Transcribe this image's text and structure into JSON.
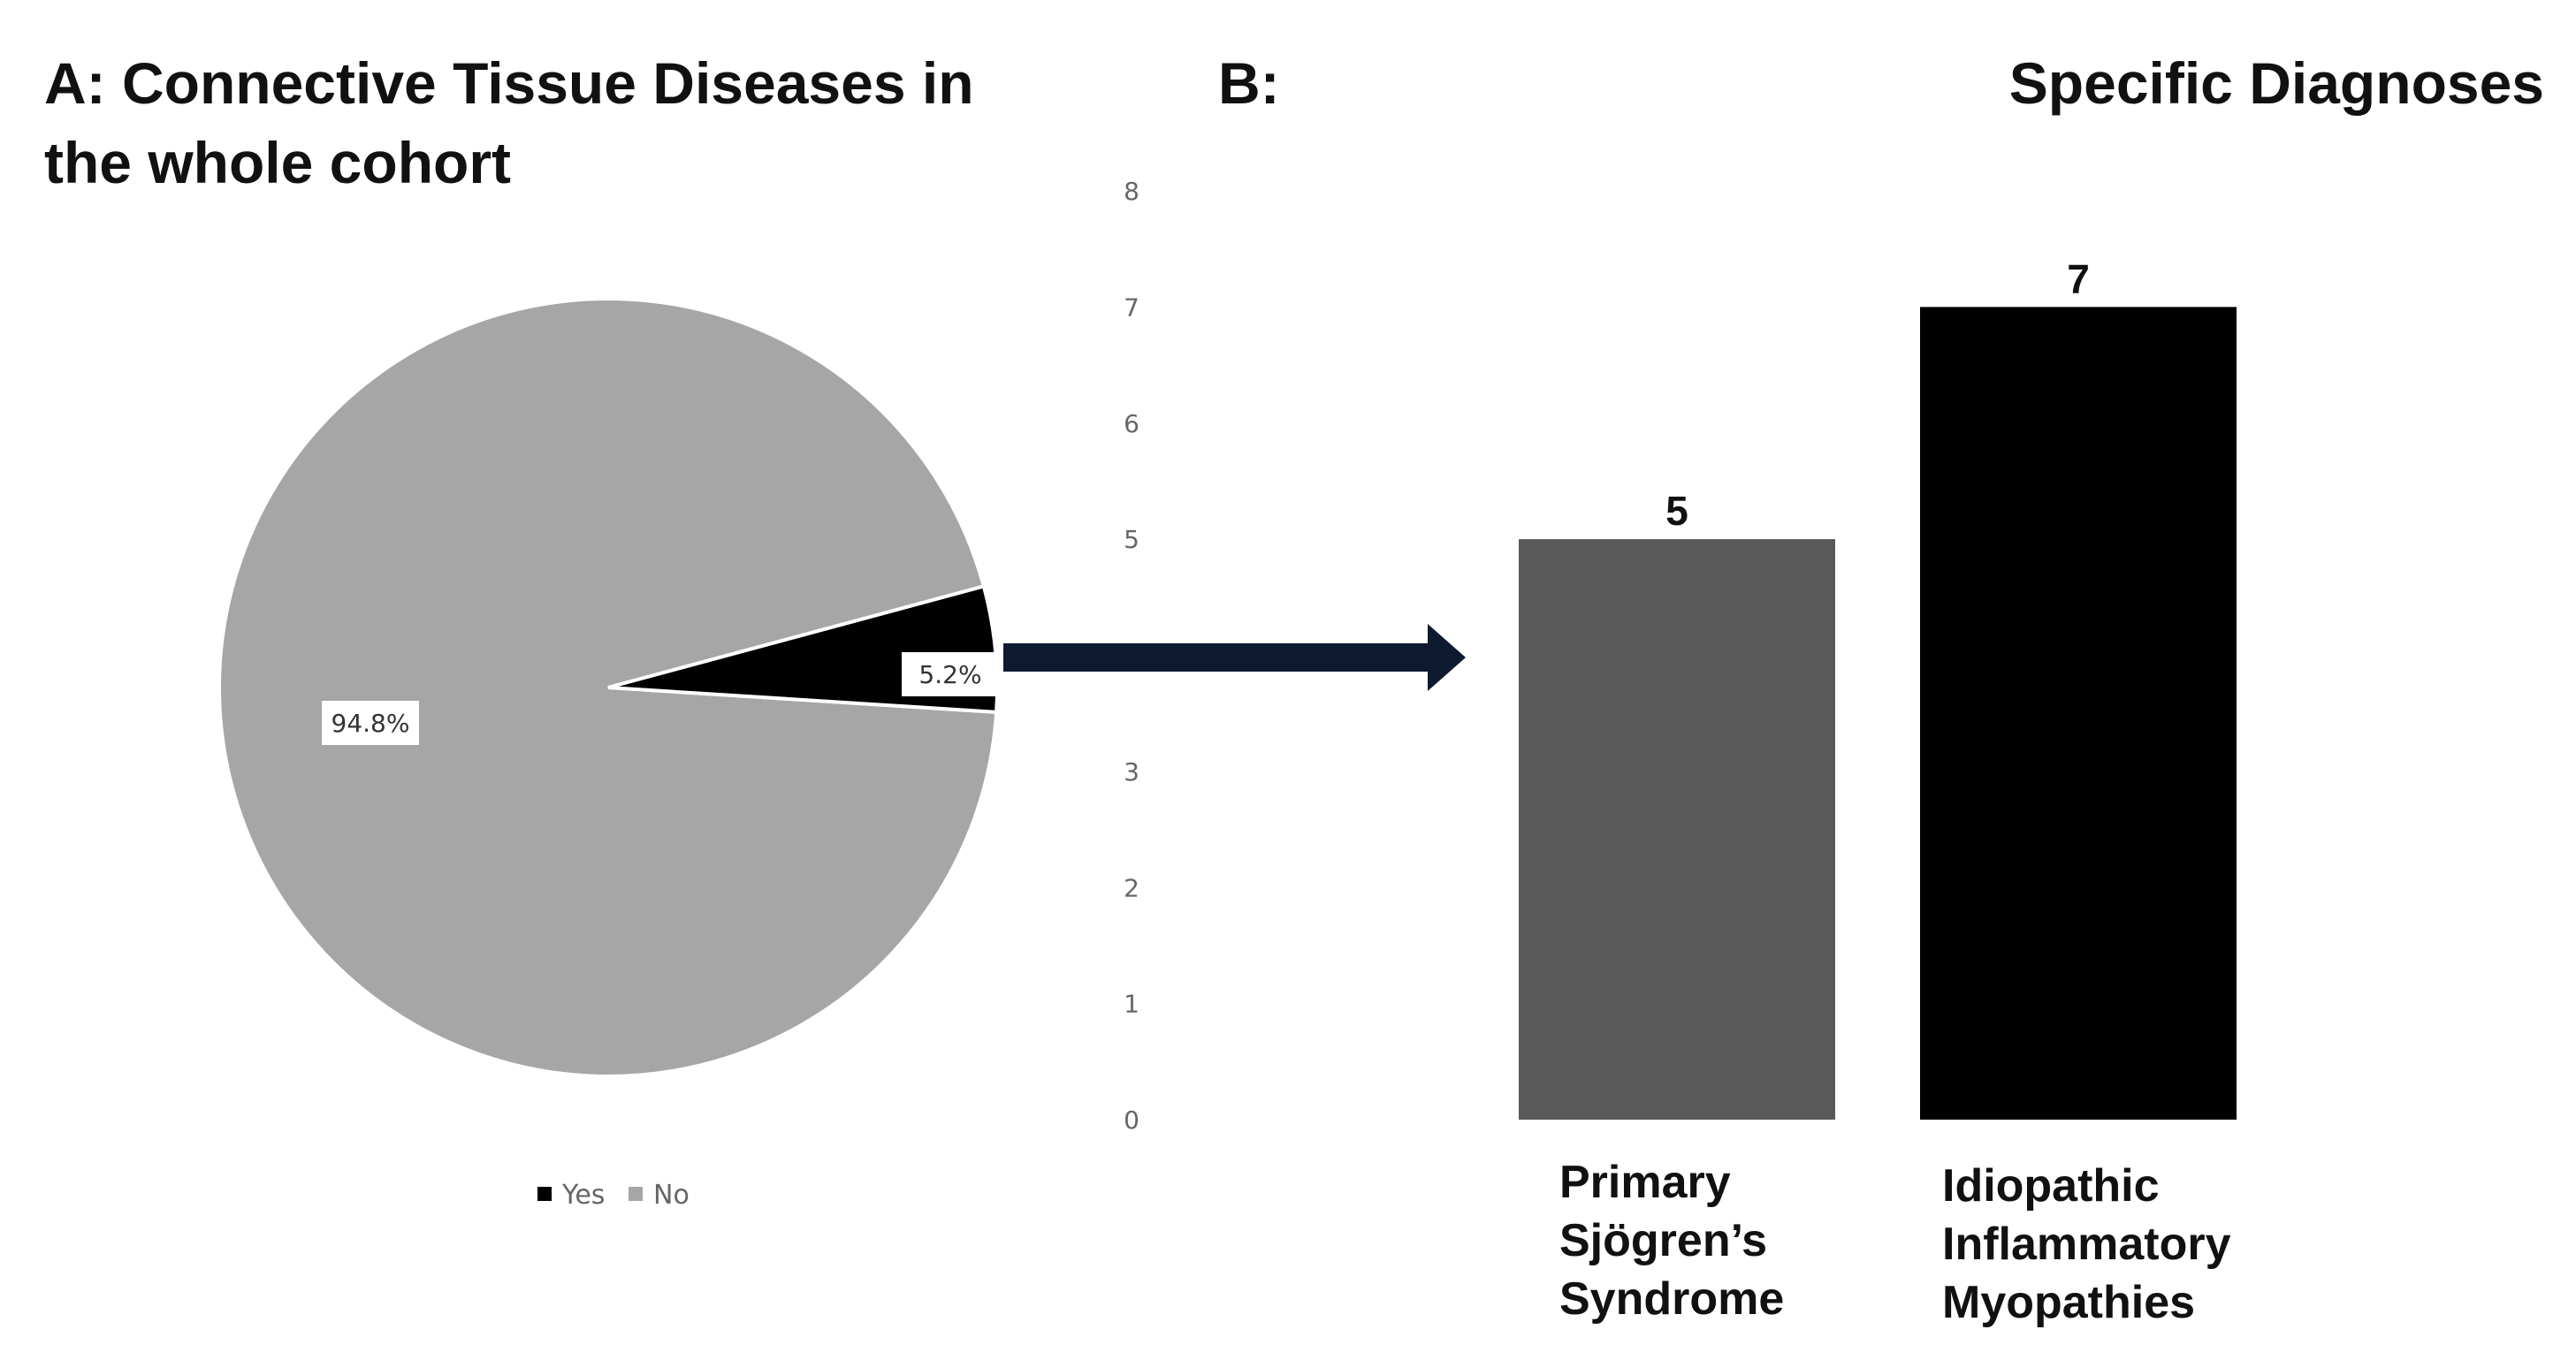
{
  "chart_data": [
    {
      "type": "pie",
      "title": "A: Connective Tissue Diseases in the whole cohort",
      "title_lines": [
        "A: Connective Tissue Diseases in",
        "the whole cohort"
      ],
      "slices": [
        {
          "label": "Yes",
          "value": 5.2,
          "display": "5.2%",
          "color": "#000000"
        },
        {
          "label": "No",
          "value": 94.8,
          "display": "94.8%",
          "color": "#a6a6a6"
        }
      ],
      "legend_position": "bottom"
    },
    {
      "type": "bar",
      "panel_label": "B:",
      "title": "Specific Diagnoses",
      "categories": [
        "Primary Sjögren’s Syndrome",
        "Idiopathic Inflammatory Myopathies"
      ],
      "category_lines": [
        [
          "Primary",
          "Sjögren’s",
          "Syndrome"
        ],
        [
          "Idiopathic",
          "Inflammatory",
          "Myopathies"
        ]
      ],
      "values": [
        5,
        7
      ],
      "value_labels": [
        "5",
        "7"
      ],
      "colors": [
        "#595959",
        "#000000"
      ],
      "yticks": [
        "0",
        "1",
        "2",
        "3",
        "5",
        "6",
        "7",
        "8"
      ],
      "ylim": [
        0,
        8
      ],
      "grid": false
    }
  ],
  "colors": {
    "arrow": "#0d1a30",
    "pie_edge": "#ffffff",
    "label_box": "#ffffff"
  }
}
